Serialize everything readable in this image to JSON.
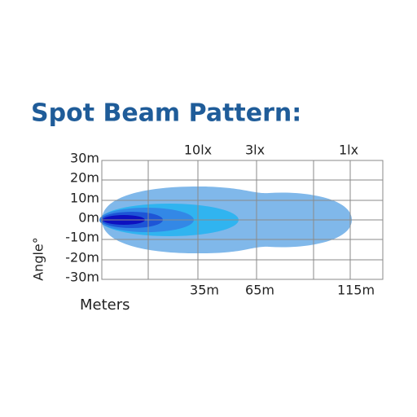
{
  "title": "Spot Beam Pattern:",
  "y_labels": [
    "30m",
    "20m",
    "10m",
    "0m",
    "-10m",
    "-20m",
    "-30m"
  ],
  "lux_labels": [
    "10lx",
    "3lx",
    "1lx"
  ],
  "distance_labels": [
    "35m",
    "65m",
    "115m"
  ],
  "y_axis_title": "Angle°",
  "x_axis_title": "Meters"
}
